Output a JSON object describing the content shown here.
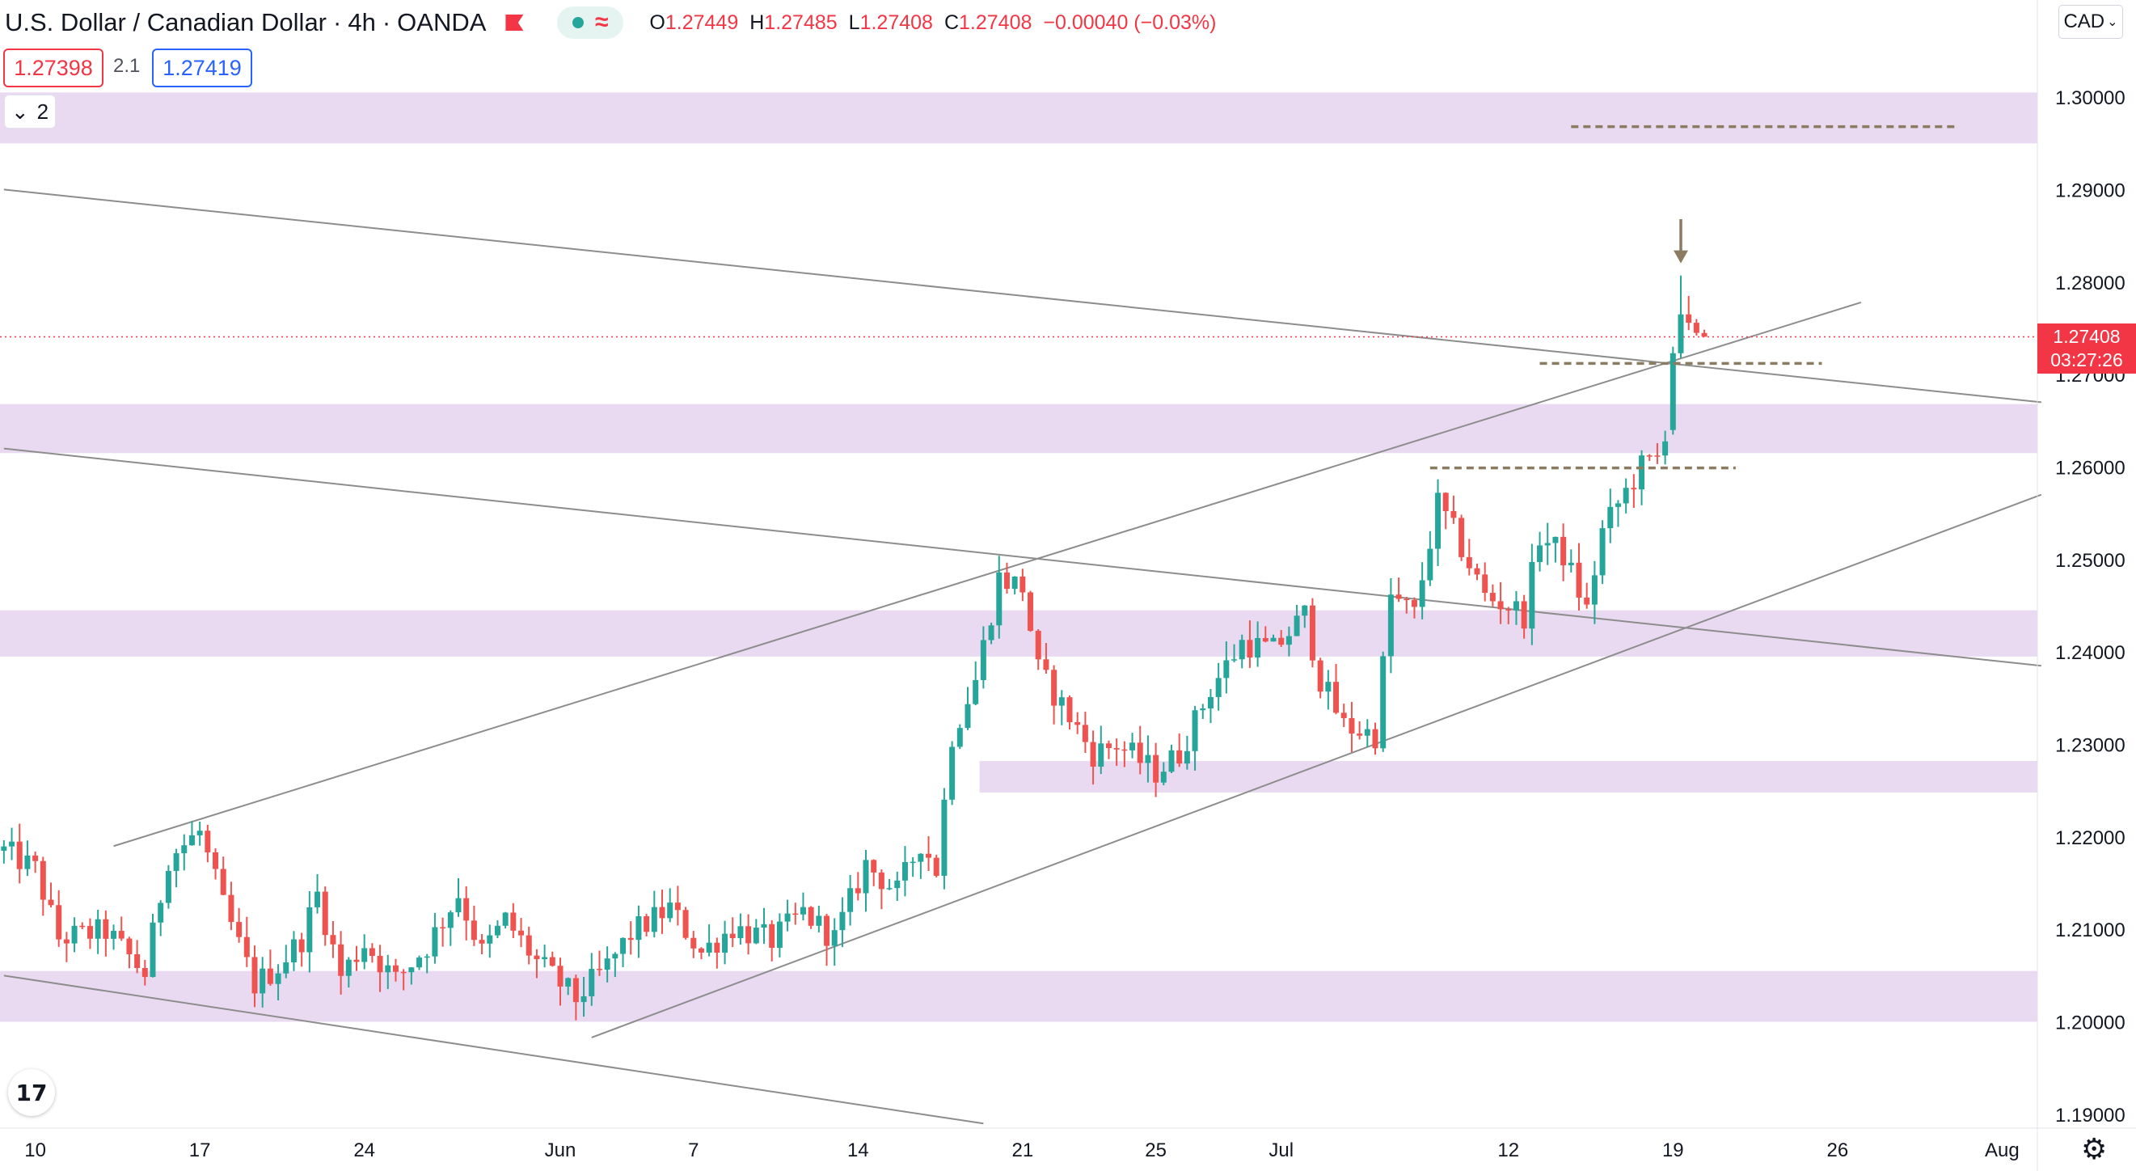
{
  "header": {
    "symbol": "U.S. Dollar / Canadian Dollar",
    "interval": "4h",
    "source": "OANDA",
    "open_label": "O",
    "open": "1.27449",
    "high_label": "H",
    "high": "1.27485",
    "low_label": "L",
    "low": "1.27408",
    "close_label": "C",
    "close": "1.27408",
    "change": "−0.00040 (−0.03%)"
  },
  "trade": {
    "sell": "1.27398",
    "spread": "2.1",
    "buy": "1.27419"
  },
  "layers": {
    "count": "2"
  },
  "currency_button": "CAD",
  "last_price": {
    "price": "1.27408",
    "countdown": "03:27:26"
  },
  "colors": {
    "up": "#26a69a",
    "down": "#ef5350",
    "zone": "#e6d3ee",
    "trendline": "#8d8d8d",
    "level": "#8b7b60",
    "last": "#f23645"
  },
  "chart_data": {
    "type": "candlestick",
    "yaxis_ticks": [
      "1.19000",
      "1.20000",
      "1.21000",
      "1.22000",
      "1.23000",
      "1.24000",
      "1.25000",
      "1.26000",
      "1.27000",
      "1.28000",
      "1.29000",
      "1.30000"
    ],
    "ylim": [
      1.1885,
      1.3105
    ],
    "xaxis_ticks": [
      "10",
      "17",
      "24",
      "Jun",
      "7",
      "14",
      "21",
      "25",
      "Jul",
      "12",
      "19",
      "26",
      "Aug"
    ],
    "bars_total": 260,
    "tick_bars": [
      4,
      25,
      46,
      71,
      88,
      109,
      130,
      147,
      163,
      192,
      213,
      234,
      255
    ],
    "waypoints": [
      [
        0,
        1.2185
      ],
      [
        4,
        1.2165
      ],
      [
        7,
        1.209
      ],
      [
        13,
        1.2098
      ],
      [
        18,
        1.2052
      ],
      [
        21,
        1.2178
      ],
      [
        25,
        1.2205
      ],
      [
        28,
        1.2125
      ],
      [
        32,
        1.204
      ],
      [
        35,
        1.206
      ],
      [
        38,
        1.209
      ],
      [
        40,
        1.2138
      ],
      [
        43,
        1.205
      ],
      [
        46,
        1.2085
      ],
      [
        50,
        1.2045
      ],
      [
        54,
        1.2082
      ],
      [
        58,
        1.2138
      ],
      [
        61,
        1.2075
      ],
      [
        64,
        1.211
      ],
      [
        68,
        1.2065
      ],
      [
        73,
        1.2025
      ],
      [
        77,
        1.206
      ],
      [
        80,
        1.2095
      ],
      [
        85,
        1.2123
      ],
      [
        89,
        1.2075
      ],
      [
        93,
        1.2102
      ],
      [
        98,
        1.2088
      ],
      [
        102,
        1.2118
      ],
      [
        106,
        1.209
      ],
      [
        110,
        1.217
      ],
      [
        114,
        1.214
      ],
      [
        117,
        1.2195
      ],
      [
        119,
        1.2165
      ],
      [
        121,
        1.231
      ],
      [
        124,
        1.237
      ],
      [
        127,
        1.248
      ],
      [
        130,
        1.247
      ],
      [
        132,
        1.238
      ],
      [
        136,
        1.233
      ],
      [
        139,
        1.229
      ],
      [
        142,
        1.23
      ],
      [
        147,
        1.227
      ],
      [
        150,
        1.229
      ],
      [
        154,
        1.236
      ],
      [
        158,
        1.241
      ],
      [
        162,
        1.2402
      ],
      [
        166,
        1.244
      ],
      [
        168,
        1.237
      ],
      [
        171,
        1.232
      ],
      [
        175,
        1.231
      ],
      [
        177,
        1.246
      ],
      [
        180,
        1.244
      ],
      [
        183,
        1.256
      ],
      [
        185,
        1.253
      ],
      [
        189,
        1.246
      ],
      [
        192,
        1.245
      ],
      [
        194,
        1.244
      ],
      [
        196,
        1.2525
      ],
      [
        199,
        1.2505
      ],
      [
        202,
        1.2445
      ],
      [
        204,
        1.253
      ],
      [
        206,
        1.256
      ],
      [
        209,
        1.26
      ],
      [
        211,
        1.261
      ],
      [
        212,
        1.264
      ],
      [
        213,
        1.272
      ],
      [
        214,
        1.2765
      ],
      [
        215,
        1.2758
      ],
      [
        216,
        1.2745
      ],
      [
        217,
        1.2741
      ]
    ],
    "special_bars": [
      {
        "bar": 213,
        "open": 1.264,
        "high": 1.273,
        "low": 1.2635,
        "close": 1.2723
      },
      {
        "bar": 214,
        "open": 1.2723,
        "high": 1.2807,
        "low": 1.2718,
        "close": 1.2765
      },
      {
        "bar": 215,
        "open": 1.2765,
        "high": 1.2785,
        "low": 1.2748,
        "close": 1.2756
      },
      {
        "bar": 216,
        "open": 1.2756,
        "high": 1.276,
        "low": 1.2742,
        "close": 1.2745
      },
      {
        "bar": 217,
        "open": 1.27449,
        "high": 1.27485,
        "low": 1.27408,
        "close": 1.27408
      }
    ],
    "zones": [
      {
        "from": 1.295,
        "to": 1.3005,
        "start_bar": 0
      },
      {
        "from": 1.2615,
        "to": 1.2668,
        "start_bar": 0
      },
      {
        "from": 1.2395,
        "to": 1.2445,
        "start_bar": 0
      },
      {
        "from": 1.2248,
        "to": 1.2282,
        "start_bar": 125
      },
      {
        "from": 1.2,
        "to": 1.2055,
        "start_bar": 0
      }
    ],
    "trendlines": [
      {
        "x1": 0,
        "y1": 1.29,
        "x2": 260,
        "y2": 1.267
      },
      {
        "x1": 0,
        "y1": 1.262,
        "x2": 260,
        "y2": 1.2385
      },
      {
        "x1": 0,
        "y1": 1.205,
        "x2": 125,
        "y2": 1.189
      },
      {
        "x1": 14,
        "y1": 1.219,
        "x2": 237,
        "y2": 1.2778
      },
      {
        "x1": 75,
        "y1": 1.1983,
        "x2": 260,
        "y2": 1.257
      }
    ],
    "levels": [
      {
        "price": 1.2968,
        "from_bar": 200,
        "to_bar": 249
      },
      {
        "price": 1.2712,
        "from_bar": 196,
        "to_bar": 232
      },
      {
        "price": 1.2599,
        "from_bar": 182,
        "to_bar": 221
      }
    ],
    "arrow": {
      "bar": 214,
      "from": 1.2868,
      "to": 1.2822
    },
    "last_price": 1.27408
  }
}
